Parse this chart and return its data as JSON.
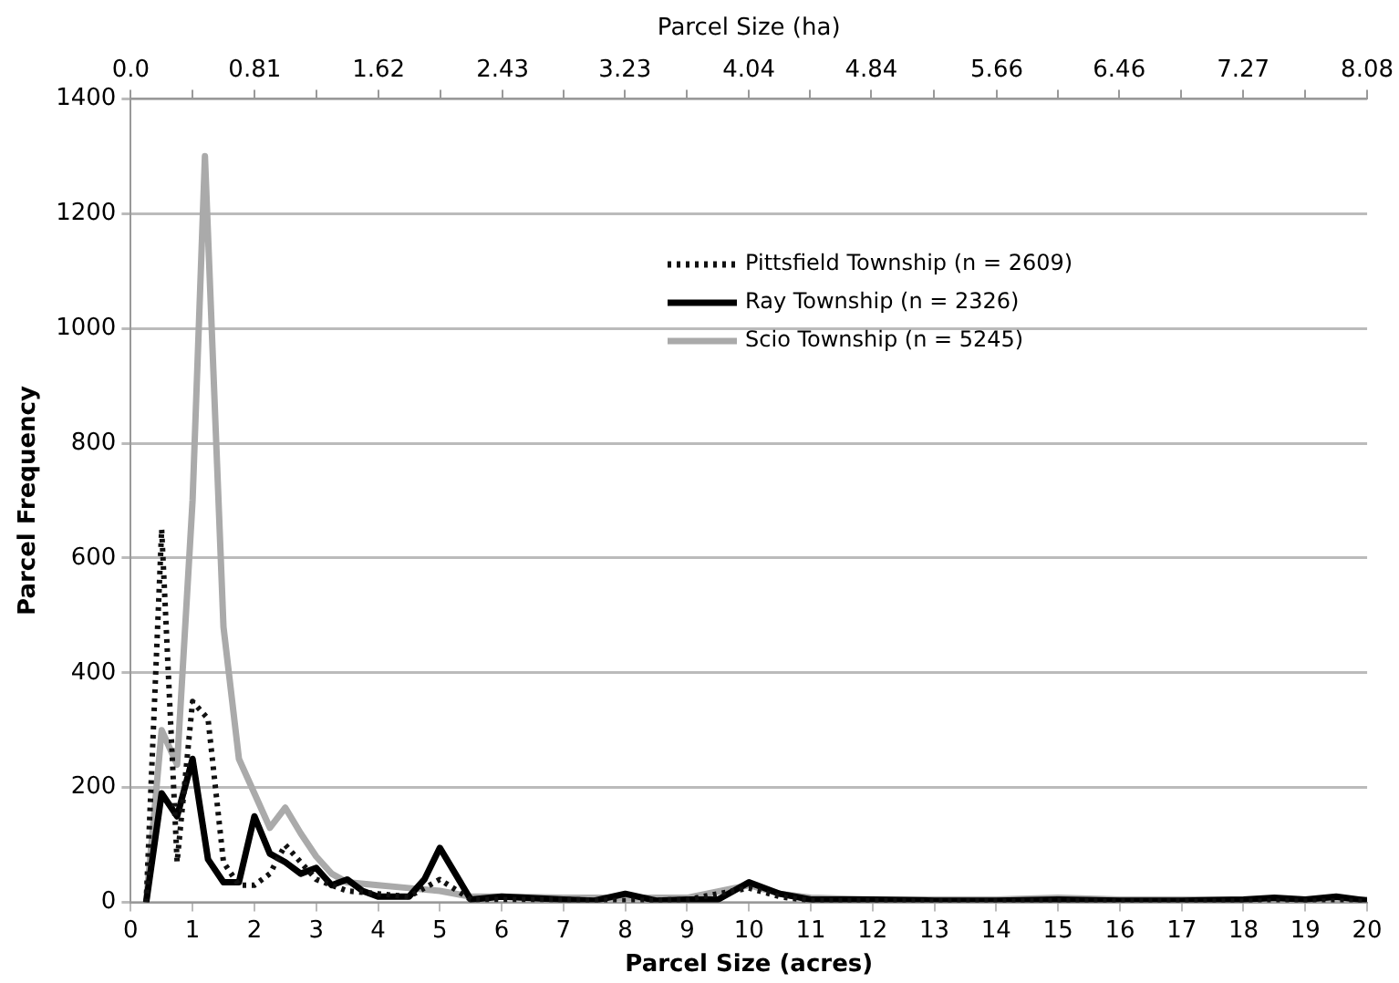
{
  "chart_data": {
    "type": "line",
    "xlabel": "Parcel Size (acres)",
    "ylabel": "Parcel Frequency",
    "x2label": "Parcel Size (ha)",
    "xlim": [
      0,
      20
    ],
    "xticks": [
      0,
      1,
      2,
      3,
      4,
      5,
      6,
      7,
      8,
      9,
      10,
      11,
      12,
      13,
      14,
      15,
      16,
      17,
      18,
      19,
      20
    ],
    "ylim": [
      0,
      1400
    ],
    "yticks": [
      0,
      200,
      400,
      600,
      800,
      1000,
      1200,
      1400
    ],
    "x2lim": [
      0,
      8.08
    ],
    "x2ticks": [
      {
        "value": 0,
        "label": "0.0"
      },
      {
        "value": 0.405,
        "label": null
      },
      0.81,
      {
        "value": 1.215,
        "label": null
      },
      1.62,
      {
        "value": 2.025,
        "label": null
      },
      2.43,
      {
        "value": 2.83,
        "label": null
      },
      3.23,
      {
        "value": 3.635,
        "label": null
      },
      4.04,
      {
        "value": 4.44,
        "label": null
      },
      4.84,
      {
        "value": 5.25,
        "label": null
      },
      5.66,
      {
        "value": 6.06,
        "label": null
      },
      6.46,
      {
        "value": 6.865,
        "label": null
      },
      7.27,
      {
        "value": 7.675,
        "label": null
      },
      8.08
    ],
    "grid": "y",
    "legend": "top right",
    "marker": "none",
    "series": [
      {
        "name": "Pittsfield Township (n = 2609)",
        "color": "#111111",
        "line_style": "dotted",
        "x": [
          0.25,
          0.5,
          0.75,
          1,
          1.25,
          1.5,
          1.75,
          2,
          2.25,
          2.5,
          2.75,
          3,
          3.5,
          4,
          4.5,
          5,
          5.5,
          6,
          7,
          8,
          9,
          10,
          10.5,
          11,
          12,
          13,
          14,
          15,
          16,
          17,
          18,
          19,
          20
        ],
        "values": [
          0,
          650,
          70,
          350,
          320,
          70,
          30,
          30,
          50,
          100,
          70,
          40,
          20,
          15,
          10,
          40,
          5,
          5,
          5,
          3,
          5,
          25,
          10,
          3,
          3,
          2,
          2,
          3,
          2,
          2,
          2,
          2,
          2
        ]
      },
      {
        "name": "Ray Township (n = 2326)",
        "color": "#000000",
        "line_style": "solid",
        "x": [
          0.25,
          0.5,
          0.75,
          1,
          1.25,
          1.5,
          1.75,
          2,
          2.25,
          2.5,
          2.75,
          3,
          3.25,
          3.5,
          3.75,
          4,
          4.5,
          4.75,
          5,
          5.25,
          5.5,
          6,
          7,
          7.5,
          8,
          8.5,
          9,
          9.5,
          10,
          10.5,
          11,
          12,
          13,
          14,
          15,
          16,
          17,
          18,
          18.5,
          19,
          19.5,
          20
        ],
        "values": [
          0,
          190,
          150,
          250,
          75,
          35,
          35,
          150,
          85,
          70,
          50,
          60,
          30,
          40,
          20,
          10,
          10,
          40,
          95,
          50,
          5,
          10,
          5,
          3,
          15,
          3,
          5,
          5,
          35,
          15,
          5,
          5,
          3,
          3,
          5,
          3,
          3,
          5,
          8,
          5,
          10,
          3
        ]
      },
      {
        "name": "Scio Township (n = 5245)",
        "color": "#aaaaaa",
        "line_style": "solid",
        "x": [
          0.25,
          0.5,
          0.75,
          1,
          1.2,
          1.5,
          1.75,
          2,
          2.25,
          2.5,
          2.75,
          3,
          3.25,
          3.5,
          4,
          4.5,
          5,
          5.5,
          6,
          7,
          8,
          9,
          10,
          10.5,
          11,
          12,
          13,
          14,
          15,
          16,
          17,
          18,
          19,
          20
        ],
        "values": [
          0,
          300,
          240,
          700,
          1300,
          480,
          250,
          190,
          130,
          165,
          120,
          80,
          50,
          35,
          30,
          25,
          20,
          10,
          10,
          8,
          8,
          8,
          30,
          15,
          8,
          5,
          5,
          5,
          8,
          5,
          5,
          5,
          5,
          5
        ]
      }
    ]
  }
}
